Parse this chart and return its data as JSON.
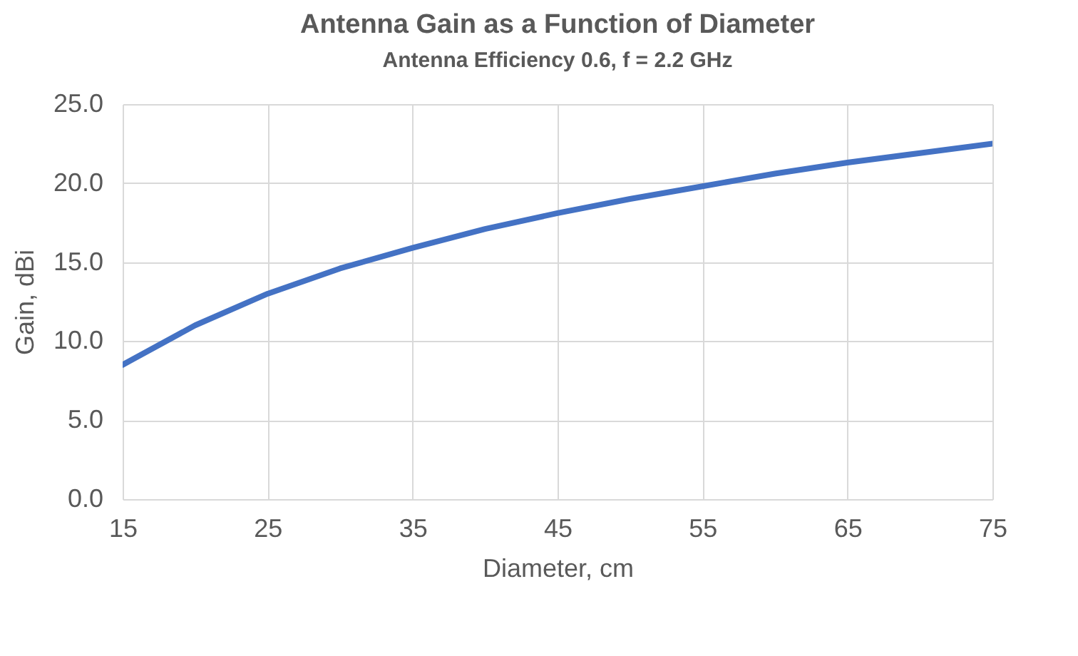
{
  "chart_data": {
    "type": "line",
    "title": "Antenna Gain as a Function of Diameter",
    "subtitle": "Antenna Efficiency 0.6, f = 2.2 GHz",
    "xlabel": "Diameter, cm",
    "ylabel": "Gain, dBi",
    "x": [
      15,
      20,
      25,
      30,
      35,
      40,
      45,
      50,
      55,
      60,
      65,
      70,
      75
    ],
    "series": [
      {
        "color": "#4472c4",
        "values": [
          8.5,
          11.0,
          13.0,
          14.6,
          15.9,
          17.1,
          18.1,
          19.0,
          19.8,
          20.6,
          21.3,
          21.9,
          22.5
        ]
      }
    ],
    "xlim": [
      15,
      75
    ],
    "xticks": [
      15,
      25,
      35,
      45,
      55,
      65,
      75
    ],
    "ylim": [
      0,
      25
    ],
    "yticks": [
      {
        "value": 0,
        "label": "0.0"
      },
      {
        "value": 5,
        "label": "5.0"
      },
      {
        "value": 10,
        "label": "10.0"
      },
      {
        "value": 15,
        "label": "15.0"
      },
      {
        "value": 20,
        "label": "20.0"
      },
      {
        "value": 25,
        "label": "25.0"
      }
    ],
    "grid": true,
    "legend": false,
    "marker": "none",
    "line_style": "solid"
  }
}
